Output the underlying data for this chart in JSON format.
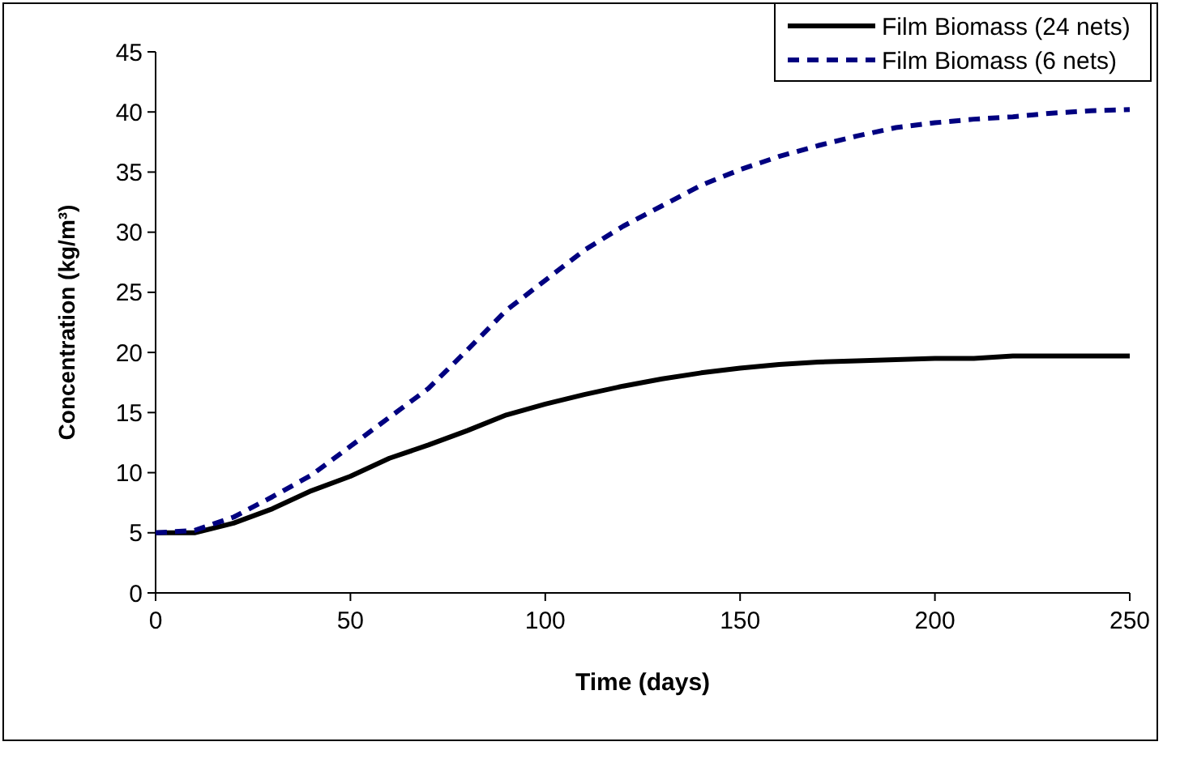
{
  "chart_data": {
    "type": "line",
    "xlabel": "Time (days)",
    "ylabel": "Concentration (kg/m³)",
    "xlim": [
      0,
      250
    ],
    "xticks": [
      0,
      50,
      100,
      150,
      200,
      250
    ],
    "ylim": [
      0,
      45
    ],
    "yticks": [
      0,
      5,
      10,
      15,
      20,
      25,
      30,
      35,
      40,
      45
    ],
    "grid": false,
    "legend": "top right",
    "x": [
      0,
      10,
      20,
      30,
      40,
      50,
      60,
      70,
      80,
      90,
      100,
      110,
      120,
      130,
      140,
      150,
      160,
      170,
      180,
      190,
      200,
      210,
      220,
      230,
      240,
      250
    ],
    "series": [
      {
        "name": "Film Biomass (24 nets)",
        "color": "#000000",
        "line_style": "solid",
        "values": [
          5,
          5,
          5.8,
          7,
          8.5,
          9.7,
          11.2,
          12.3,
          13.5,
          14.8,
          15.7,
          16.5,
          17.2,
          17.8,
          18.3,
          18.7,
          19,
          19.2,
          19.3,
          19.4,
          19.5,
          19.5,
          19.7,
          19.7,
          19.7,
          19.7
        ]
      },
      {
        "name": "Film Biomass (6 nets)",
        "color": "#000080",
        "line_style": "dashed",
        "values": [
          5,
          5.2,
          6.3,
          8,
          9.8,
          12.2,
          14.6,
          17,
          20.2,
          23.5,
          26,
          28.5,
          30.5,
          32.2,
          33.9,
          35.2,
          36.3,
          37.2,
          38,
          38.7,
          39.1,
          39.4,
          39.6,
          39.9,
          40.1,
          40.2
        ]
      }
    ]
  }
}
